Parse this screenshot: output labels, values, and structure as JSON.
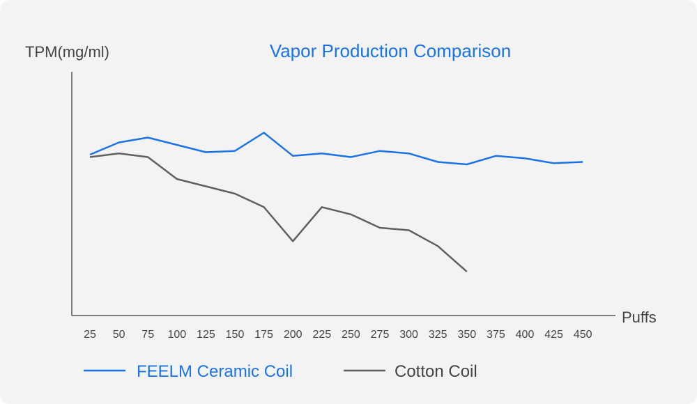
{
  "colors": {
    "background": "#f3f3f3",
    "axis": "#555555",
    "text": "#444444",
    "feelm": "#1a73e8",
    "cotton": "#5f5f5f"
  },
  "chart_data": {
    "type": "line",
    "title": "Vapor Production Comparison",
    "ylabel": "TPM(mg/ml)",
    "xlabel": "Puffs",
    "x": [
      25,
      50,
      75,
      100,
      125,
      150,
      175,
      200,
      225,
      250,
      275,
      300,
      325,
      350,
      375,
      400,
      425,
      450
    ],
    "y_ticks_shown": false,
    "ylim": [
      0,
      100
    ],
    "grid": false,
    "legend_position": "bottom",
    "series": [
      {
        "name": "FEELM Ceramic Coil",
        "color": "#1a73e8",
        "values": [
          66,
          71,
          73,
          70,
          67,
          67.5,
          75,
          65.5,
          66.5,
          65,
          67.5,
          66.5,
          63,
          62,
          65.5,
          64.5,
          62.5,
          63
        ]
      },
      {
        "name": "Cotton Coil",
        "color": "#5f5f5f",
        "values": [
          65,
          66.5,
          65,
          56,
          53,
          50,
          44.5,
          30.5,
          44.5,
          41.5,
          36,
          35,
          28.5,
          18,
          null,
          null,
          null,
          null
        ]
      }
    ]
  }
}
